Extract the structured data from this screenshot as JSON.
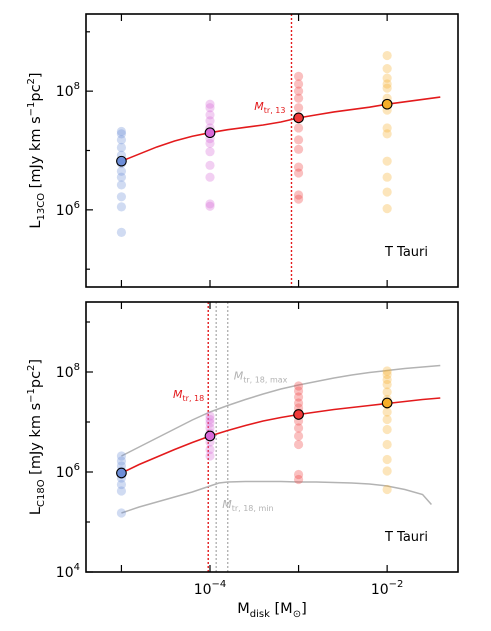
{
  "chart_data": [
    {
      "type": "scatter",
      "panel_label": "T Tauri",
      "ylabel": "L13CO [mJy km s−1pc2]",
      "xlim_log10": [
        -5.4,
        -1.2
      ],
      "ylim_log10": [
        4.7,
        9.3
      ],
      "y_ticks": [
        {
          "log10": 6,
          "label": "10^6"
        },
        {
          "log10": 8,
          "label": "10^8"
        }
      ],
      "colors": {
        "1e-5": "#6d8ed8",
        "1e-4": "#d86ad8",
        "1e-3": "#f03a3a",
        "1e-2": "#f5ae2a",
        "fit": "#e31a1c",
        "threshold": "#e31a1c"
      },
      "series": [
        {
          "x_log10": -5,
          "y_log10": [
            7.32,
            7.28,
            7.18,
            7.05,
            6.92,
            6.78,
            6.65,
            6.55,
            6.42,
            6.22,
            6.05,
            5.62
          ]
        },
        {
          "x_log10": -4,
          "y_log10": [
            7.78,
            7.72,
            7.6,
            7.5,
            7.38,
            7.2,
            7.12,
            6.98,
            6.75,
            6.55,
            6.1,
            6.06
          ]
        },
        {
          "x_log10": -3,
          "y_log10": [
            8.25,
            8.12,
            8.0,
            7.88,
            7.72,
            7.55,
            7.38,
            7.18,
            7.02,
            6.72,
            6.62,
            6.25,
            6.18
          ]
        },
        {
          "x_log10": -2,
          "y_log10": [
            8.6,
            8.38,
            8.22,
            8.12,
            8.05,
            7.88,
            7.68,
            7.38,
            7.28,
            6.82,
            6.55,
            6.3,
            6.02
          ]
        }
      ],
      "medians": [
        {
          "x_log10": -5,
          "y_log10": 6.82
        },
        {
          "x_log10": -4,
          "y_log10": 7.3
        },
        {
          "x_log10": -3,
          "y_log10": 7.55
        },
        {
          "x_log10": -2,
          "y_log10": 7.78
        }
      ],
      "fit": {
        "x_log10": [
          -5,
          -4.8,
          -4.6,
          -4.4,
          -4.2,
          -4,
          -3.8,
          -3.6,
          -3.4,
          -3.2,
          -3,
          -2.8,
          -2.6,
          -2.4,
          -2.2,
          -2,
          -1.8,
          -1.6,
          -1.4
        ],
        "y_log10": [
          6.82,
          6.94,
          7.06,
          7.16,
          7.24,
          7.3,
          7.35,
          7.39,
          7.43,
          7.48,
          7.55,
          7.6,
          7.65,
          7.69,
          7.73,
          7.78,
          7.82,
          7.86,
          7.9
        ]
      },
      "thresholds": [
        {
          "x_log10": -3.08,
          "label": "M",
          "sub": "tr, 13",
          "color": "#e31a1c"
        }
      ]
    },
    {
      "type": "scatter",
      "panel_label": "T Tauri",
      "ylabel": "LC18O [mJy km s−1pc2]",
      "xlabel": "Mdisk [M⊙]",
      "xlim_log10": [
        -5.4,
        -1.2
      ],
      "ylim_log10": [
        4,
        9.4
      ],
      "x_ticks": [
        {
          "log10": -4,
          "label": "10^−4"
        },
        {
          "log10": -2,
          "label": "10^−2"
        }
      ],
      "y_ticks": [
        {
          "log10": 4,
          "label": "10^4"
        },
        {
          "log10": 6,
          "label": "10^6"
        },
        {
          "log10": 8,
          "label": "10^8"
        }
      ],
      "colors": {
        "1e-5": "#6d8ed8",
        "1e-4": "#d86ad8",
        "1e-3": "#f03a3a",
        "1e-2": "#f5ae2a",
        "fit": "#e31a1c",
        "threshold": "#e31a1c",
        "bound": "#b3b3b3"
      },
      "series": [
        {
          "x_log10": -5,
          "y_log10": [
            6.32,
            6.22,
            6.12,
            6.02,
            5.95,
            5.88,
            5.75,
            5.62,
            5.18
          ]
        },
        {
          "x_log10": -4,
          "y_log10": [
            7.12,
            7.05,
            6.98,
            6.88,
            6.78,
            6.72,
            6.6,
            6.45,
            6.32
          ]
        },
        {
          "x_log10": -3,
          "y_log10": [
            7.72,
            7.62,
            7.5,
            7.38,
            7.28,
            7.18,
            7.02,
            6.88,
            6.72,
            6.55,
            5.95,
            5.85
          ]
        },
        {
          "x_log10": -2,
          "y_log10": [
            8.02,
            7.95,
            7.85,
            7.75,
            7.6,
            7.45,
            7.35,
            7.2,
            7.05,
            6.85,
            6.55,
            6.25,
            6.02,
            5.65
          ]
        }
      ],
      "medians": [
        {
          "x_log10": -5,
          "y_log10": 5.98
        },
        {
          "x_log10": -4,
          "y_log10": 6.72
        },
        {
          "x_log10": -3,
          "y_log10": 7.15
        },
        {
          "x_log10": -2,
          "y_log10": 7.38
        }
      ],
      "fit": {
        "x_log10": [
          -5,
          -4.8,
          -4.6,
          -4.4,
          -4.2,
          -4,
          -3.8,
          -3.6,
          -3.4,
          -3.2,
          -3,
          -2.8,
          -2.6,
          -2.4,
          -2.2,
          -2,
          -1.8,
          -1.6,
          -1.4
        ],
        "y_log10": [
          5.98,
          6.15,
          6.3,
          6.45,
          6.59,
          6.72,
          6.83,
          6.93,
          7.02,
          7.09,
          7.15,
          7.2,
          7.25,
          7.29,
          7.33,
          7.37,
          7.41,
          7.45,
          7.48
        ]
      },
      "upper_bound": {
        "x_log10": [
          -5,
          -4.8,
          -4.6,
          -4.4,
          -4.2,
          -4,
          -3.8,
          -3.6,
          -3.4,
          -3.2,
          -3,
          -2.8,
          -2.6,
          -2.4,
          -2.2,
          -2,
          -1.8,
          -1.6,
          -1.4
        ],
        "y_log10": [
          6.32,
          6.5,
          6.68,
          6.86,
          7.04,
          7.2,
          7.33,
          7.45,
          7.56,
          7.66,
          7.74,
          7.81,
          7.88,
          7.94,
          7.99,
          8.03,
          8.07,
          8.1,
          8.13
        ]
      },
      "lower_bound": {
        "x_log10": [
          -5,
          -4.8,
          -4.6,
          -4.4,
          -4.2,
          -4,
          -3.9,
          -3.8,
          -3.6,
          -3.4,
          -3.2,
          -3,
          -2.8,
          -2.6,
          -2.4,
          -2.2,
          -2,
          -1.8,
          -1.6,
          -1.5
        ],
        "y_log10": [
          5.18,
          5.3,
          5.4,
          5.5,
          5.6,
          5.72,
          5.78,
          5.8,
          5.81,
          5.81,
          5.81,
          5.8,
          5.8,
          5.79,
          5.78,
          5.76,
          5.72,
          5.65,
          5.55,
          5.35
        ]
      },
      "thresholds": [
        {
          "x_log10": -4.02,
          "label": "M",
          "sub": "tr, 18",
          "color": "#e31a1c"
        },
        {
          "x_log10": -3.8,
          "label": "M",
          "sub": "tr, 18, max",
          "color": "#b3b3b3"
        },
        {
          "x_log10": -3.93,
          "label": "M",
          "sub": "tr, 18, min",
          "color": "#b3b3b3"
        }
      ]
    }
  ]
}
